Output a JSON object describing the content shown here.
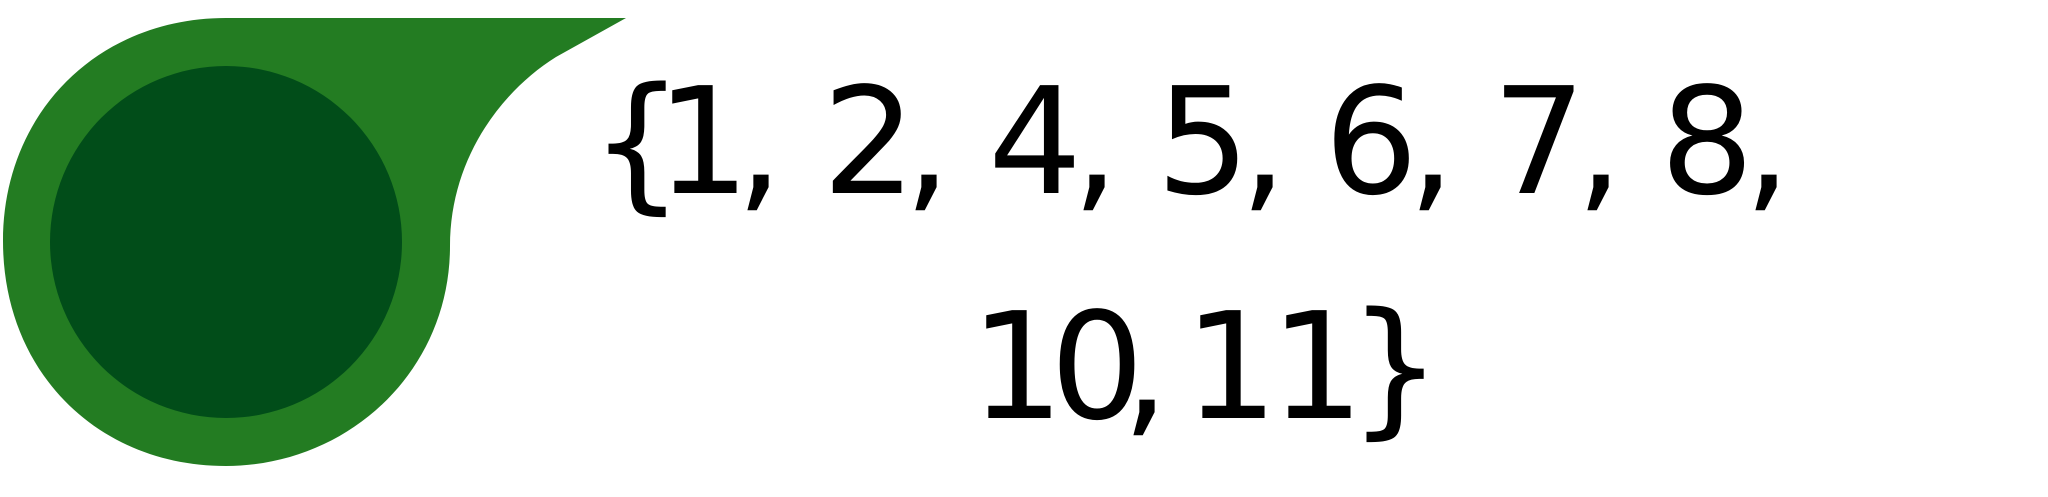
{
  "set": {
    "line1": [
      "{",
      "1",
      ",",
      "2",
      ",",
      "4",
      ",",
      "5",
      ",",
      "6",
      ",",
      "7",
      ",",
      "8",
      ","
    ],
    "line2": [
      "1",
      "0",
      ",",
      "1",
      "1",
      "}"
    ]
  },
  "colors": {
    "outer_shape": "#237c22",
    "inner_circle": "#014d19",
    "text": "#000000"
  }
}
